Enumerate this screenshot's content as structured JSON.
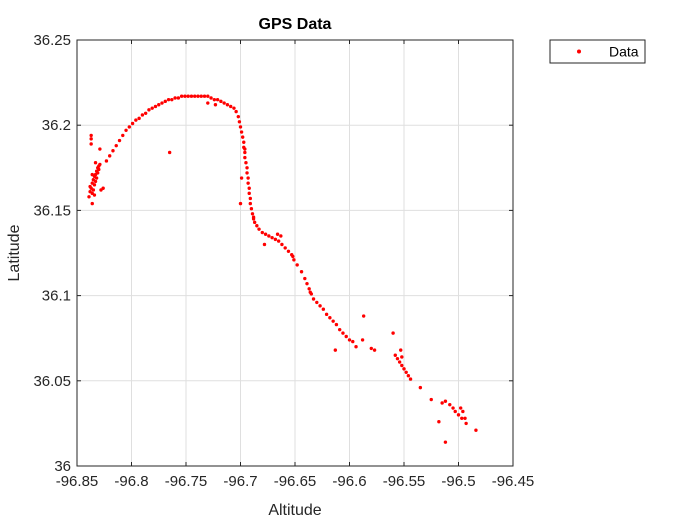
{
  "chart_data": {
    "type": "scatter",
    "title": "GPS Data",
    "xlabel": "Altitude",
    "ylabel": "Latitude",
    "xlim": [
      -96.85,
      -96.45
    ],
    "ylim": [
      36.0,
      36.25
    ],
    "xticks": [
      -96.85,
      -96.8,
      -96.75,
      -96.7,
      -96.65,
      -96.6,
      -96.55,
      -96.5,
      -96.45
    ],
    "xtick_labels": [
      "-96.85",
      "-96.8",
      "-96.75",
      "-96.7",
      "-96.65",
      "-96.6",
      "-96.55",
      "-96.5",
      "-96.45"
    ],
    "yticks": [
      36.0,
      36.05,
      36.1,
      36.15,
      36.2,
      36.25
    ],
    "ytick_labels": [
      "36",
      "36.05",
      "36.1",
      "36.15",
      "36.2",
      "36.25"
    ],
    "grid": true,
    "legend": {
      "position": "outside-top-right",
      "entries": [
        "Data"
      ]
    },
    "series": [
      {
        "name": "Data",
        "color": "#ff0000",
        "marker": "dot",
        "points": [
          [
            -96.839,
            36.158
          ],
          [
            -96.838,
            36.161
          ],
          [
            -96.837,
            36.163
          ],
          [
            -96.836,
            36.166
          ],
          [
            -96.835,
            36.168
          ],
          [
            -96.834,
            36.17
          ],
          [
            -96.833,
            36.171
          ],
          [
            -96.832,
            36.173
          ],
          [
            -96.831,
            36.175
          ],
          [
            -96.83,
            36.176
          ],
          [
            -96.836,
            36.16
          ],
          [
            -96.835,
            36.162
          ],
          [
            -96.834,
            36.165
          ],
          [
            -96.833,
            36.167
          ],
          [
            -96.832,
            36.169
          ],
          [
            -96.831,
            36.172
          ],
          [
            -96.83,
            36.174
          ],
          [
            -96.829,
            36.177
          ],
          [
            -96.838,
            36.164
          ],
          [
            -96.836,
            36.171
          ],
          [
            -96.837,
            36.194
          ],
          [
            -96.837,
            36.192
          ],
          [
            -96.837,
            36.189
          ],
          [
            -96.836,
            36.154
          ],
          [
            -96.834,
            36.159
          ],
          [
            -96.829,
            36.186
          ],
          [
            -96.826,
            36.163
          ],
          [
            -96.828,
            36.162
          ],
          [
            -96.833,
            36.178
          ],
          [
            -96.823,
            36.179
          ],
          [
            -96.82,
            36.182
          ],
          [
            -96.817,
            36.185
          ],
          [
            -96.814,
            36.188
          ],
          [
            -96.811,
            36.191
          ],
          [
            -96.808,
            36.194
          ],
          [
            -96.805,
            36.197
          ],
          [
            -96.802,
            36.199
          ],
          [
            -96.799,
            36.201
          ],
          [
            -96.796,
            36.203
          ],
          [
            -96.793,
            36.204
          ],
          [
            -96.79,
            36.206
          ],
          [
            -96.787,
            36.207
          ],
          [
            -96.784,
            36.209
          ],
          [
            -96.781,
            36.21
          ],
          [
            -96.778,
            36.211
          ],
          [
            -96.775,
            36.212
          ],
          [
            -96.772,
            36.213
          ],
          [
            -96.769,
            36.214
          ],
          [
            -96.766,
            36.215
          ],
          [
            -96.763,
            36.215
          ],
          [
            -96.76,
            36.216
          ],
          [
            -96.757,
            36.216
          ],
          [
            -96.754,
            36.217
          ],
          [
            -96.751,
            36.217
          ],
          [
            -96.748,
            36.217
          ],
          [
            -96.745,
            36.217
          ],
          [
            -96.742,
            36.217
          ],
          [
            -96.739,
            36.217
          ],
          [
            -96.736,
            36.217
          ],
          [
            -96.733,
            36.217
          ],
          [
            -96.73,
            36.217
          ],
          [
            -96.727,
            36.216
          ],
          [
            -96.724,
            36.215
          ],
          [
            -96.721,
            36.215
          ],
          [
            -96.718,
            36.214
          ],
          [
            -96.715,
            36.213
          ],
          [
            -96.712,
            36.212
          ],
          [
            -96.709,
            36.211
          ],
          [
            -96.706,
            36.21
          ],
          [
            -96.704,
            36.208
          ],
          [
            -96.702,
            36.205
          ],
          [
            -96.701,
            36.202
          ],
          [
            -96.7,
            36.199
          ],
          [
            -96.699,
            36.196
          ],
          [
            -96.73,
            36.213
          ],
          [
            -96.723,
            36.212
          ],
          [
            -96.765,
            36.184
          ],
          [
            -96.698,
            36.193
          ],
          [
            -96.697,
            36.19
          ],
          [
            -96.697,
            36.187
          ],
          [
            -96.696,
            36.184
          ],
          [
            -96.696,
            36.181
          ],
          [
            -96.695,
            36.178
          ],
          [
            -96.694,
            36.175
          ],
          [
            -96.694,
            36.172
          ],
          [
            -96.693,
            36.169
          ],
          [
            -96.693,
            36.166
          ],
          [
            -96.692,
            36.163
          ],
          [
            -96.692,
            36.16
          ],
          [
            -96.691,
            36.157
          ],
          [
            -96.691,
            36.154
          ],
          [
            -96.69,
            36.151
          ],
          [
            -96.689,
            36.148
          ],
          [
            -96.688,
            36.146
          ],
          [
            -96.687,
            36.143
          ],
          [
            -96.685,
            36.141
          ],
          [
            -96.683,
            36.139
          ],
          [
            -96.699,
            36.169
          ],
          [
            -96.7,
            36.154
          ],
          [
            -96.696,
            36.186
          ],
          [
            -96.688,
            36.145
          ],
          [
            -96.68,
            36.137
          ],
          [
            -96.677,
            36.136
          ],
          [
            -96.674,
            36.135
          ],
          [
            -96.671,
            36.134
          ],
          [
            -96.668,
            36.133
          ],
          [
            -96.665,
            36.132
          ],
          [
            -96.662,
            36.13
          ],
          [
            -96.678,
            36.13
          ],
          [
            -96.666,
            36.136
          ],
          [
            -96.663,
            36.135
          ],
          [
            -96.659,
            36.128
          ],
          [
            -96.656,
            36.126
          ],
          [
            -96.653,
            36.124
          ],
          [
            -96.651,
            36.121
          ],
          [
            -96.648,
            36.118
          ],
          [
            -96.644,
            36.114
          ],
          [
            -96.641,
            36.11
          ],
          [
            -96.639,
            36.107
          ],
          [
            -96.637,
            36.104
          ],
          [
            -96.635,
            36.101
          ],
          [
            -96.633,
            36.098
          ],
          [
            -96.63,
            36.096
          ],
          [
            -96.627,
            36.094
          ],
          [
            -96.624,
            36.092
          ],
          [
            -96.621,
            36.089
          ],
          [
            -96.618,
            36.087
          ],
          [
            -96.615,
            36.085
          ],
          [
            -96.612,
            36.083
          ],
          [
            -96.609,
            36.08
          ],
          [
            -96.606,
            36.078
          ],
          [
            -96.603,
            36.076
          ],
          [
            -96.6,
            36.074
          ],
          [
            -96.597,
            36.073
          ],
          [
            -96.588,
            36.074
          ],
          [
            -96.587,
            36.088
          ],
          [
            -96.613,
            36.068
          ],
          [
            -96.594,
            36.07
          ],
          [
            -96.636,
            36.102
          ],
          [
            -96.652,
            36.123
          ],
          [
            -96.58,
            36.069
          ],
          [
            -96.577,
            36.068
          ],
          [
            -96.56,
            36.078
          ],
          [
            -96.553,
            36.068
          ],
          [
            -96.552,
            36.064
          ],
          [
            -96.558,
            36.065
          ],
          [
            -96.556,
            36.063
          ],
          [
            -96.554,
            36.061
          ],
          [
            -96.552,
            36.059
          ],
          [
            -96.55,
            36.057
          ],
          [
            -96.548,
            36.055
          ],
          [
            -96.546,
            36.053
          ],
          [
            -96.544,
            36.051
          ],
          [
            -96.535,
            36.046
          ],
          [
            -96.525,
            36.039
          ],
          [
            -96.515,
            36.037
          ],
          [
            -96.512,
            36.038
          ],
          [
            -96.508,
            36.036
          ],
          [
            -96.505,
            36.034
          ],
          [
            -96.503,
            36.032
          ],
          [
            -96.5,
            36.03
          ],
          [
            -96.498,
            36.034
          ],
          [
            -96.496,
            36.032
          ],
          [
            -96.494,
            36.028
          ],
          [
            -96.493,
            36.025
          ],
          [
            -96.518,
            36.026
          ],
          [
            -96.512,
            36.014
          ],
          [
            -96.484,
            36.021
          ],
          [
            -96.497,
            36.028
          ]
        ]
      }
    ]
  }
}
